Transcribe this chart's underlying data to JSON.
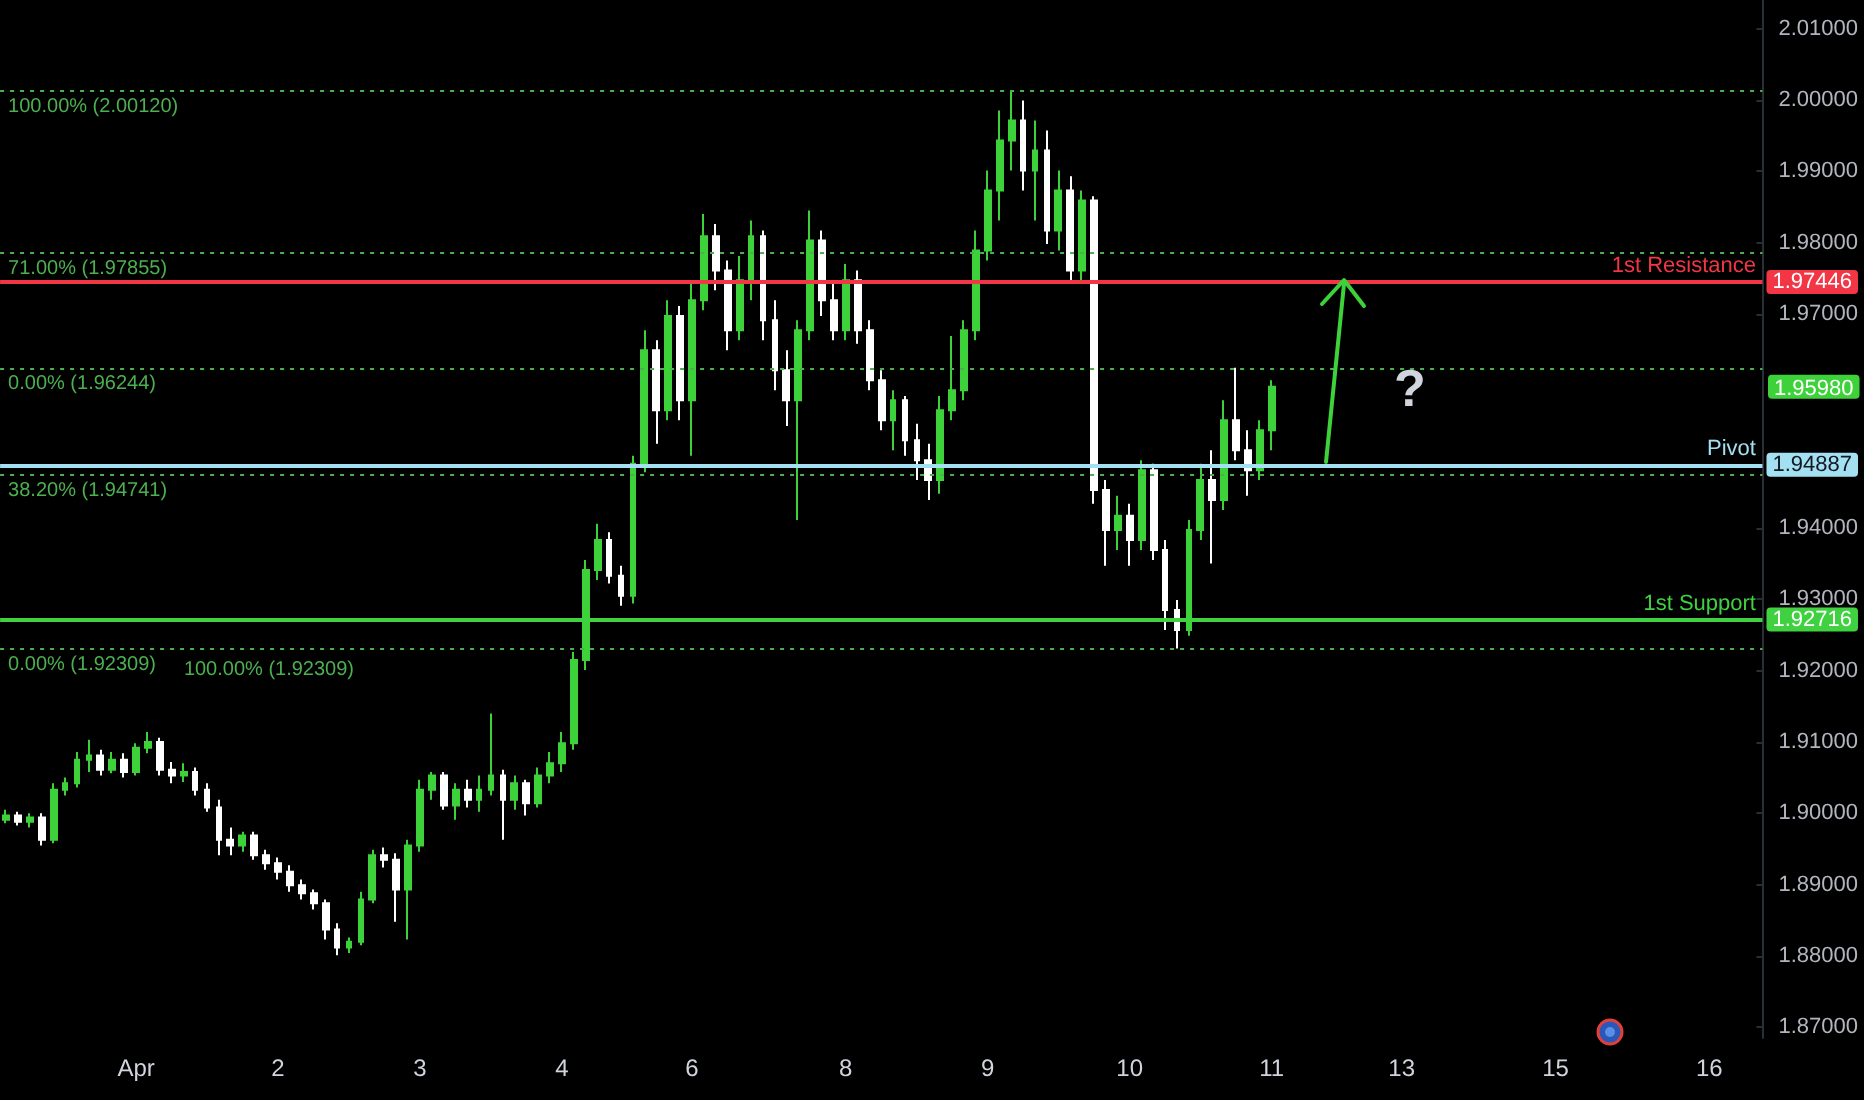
{
  "chart_data": {
    "type": "candlestick",
    "categories": [
      null,
      null,
      null,
      null,
      null,
      null,
      null,
      null,
      null,
      null,
      null,
      "Apr",
      null,
      null,
      null,
      null,
      null,
      null,
      null,
      null,
      null,
      null,
      null,
      "2",
      null,
      null,
      null,
      null,
      null,
      null,
      null,
      null,
      null,
      null,
      null,
      "3",
      null,
      null,
      null,
      null,
      null,
      null,
      null,
      null,
      null,
      null,
      null,
      "4",
      null,
      null,
      null,
      null,
      null,
      null,
      null,
      null,
      null,
      null,
      "6",
      null,
      null,
      null,
      null,
      null,
      null,
      null,
      null,
      null,
      null,
      null,
      null,
      "8",
      null,
      null,
      null,
      null,
      null,
      null,
      null,
      null,
      null,
      null,
      null,
      "9",
      null,
      null,
      null,
      null,
      null,
      null,
      null,
      null,
      null,
      null,
      null,
      "10",
      null,
      null,
      null,
      null,
      null,
      null,
      null,
      null,
      null,
      null,
      null,
      "11",
      null,
      null,
      null,
      null,
      null,
      null,
      null,
      null,
      null,
      null,
      "13",
      null,
      null,
      null,
      null,
      null,
      null,
      null,
      null,
      null,
      null,
      null,
      null,
      "15",
      null,
      null,
      null,
      null,
      null,
      null,
      null,
      null,
      null,
      null,
      null,
      null,
      "16",
      null,
      null,
      null,
      null
    ],
    "ohlc": [
      [
        1.8991,
        1.9005,
        1.8986,
        1.8997
      ],
      [
        1.8997,
        1.9002,
        1.8983,
        1.8988
      ],
      [
        1.8988,
        1.9,
        1.898,
        1.8994
      ],
      [
        1.8994,
        1.9,
        1.8955,
        1.8963
      ],
      [
        1.8963,
        1.9042,
        1.8958,
        1.9033
      ],
      [
        1.9033,
        1.905,
        1.9025,
        1.9042
      ],
      [
        1.9042,
        1.9086,
        1.9036,
        1.9075
      ],
      [
        1.9075,
        1.9103,
        1.9058,
        1.9081
      ],
      [
        1.9081,
        1.9089,
        1.9053,
        1.9061
      ],
      [
        1.9061,
        1.9086,
        1.9056,
        1.9075
      ],
      [
        1.9075,
        1.9084,
        1.905,
        1.9058
      ],
      [
        1.9058,
        1.9098,
        1.9053,
        1.9092
      ],
      [
        1.9092,
        1.9114,
        1.9084,
        1.91
      ],
      [
        1.91,
        1.9106,
        1.9053,
        1.9061
      ],
      [
        1.9061,
        1.9072,
        1.9042,
        1.9053
      ],
      [
        1.9053,
        1.907,
        1.9044,
        1.9058
      ],
      [
        1.9058,
        1.9064,
        1.9025,
        1.9033
      ],
      [
        1.9033,
        1.9042,
        1.9002,
        1.9008
      ],
      [
        1.9008,
        1.9019,
        1.8941,
        1.8963
      ],
      [
        1.8963,
        1.898,
        1.8941,
        1.8955
      ],
      [
        1.8955,
        1.8974,
        1.8946,
        1.8969
      ],
      [
        1.8969,
        1.8974,
        1.8935,
        1.8941
      ],
      [
        1.8941,
        1.8949,
        1.8921,
        1.893
      ],
      [
        1.893,
        1.8938,
        1.8907,
        1.8918
      ],
      [
        1.8918,
        1.8927,
        1.889,
        1.8899
      ],
      [
        1.8899,
        1.8907,
        1.8879,
        1.8888
      ],
      [
        1.8888,
        1.8893,
        1.8865,
        1.8874
      ],
      [
        1.8874,
        1.8879,
        1.8823,
        1.8837
      ],
      [
        1.8837,
        1.8846,
        1.8801,
        1.8812
      ],
      [
        1.8812,
        1.8826,
        1.8804,
        1.882
      ],
      [
        1.882,
        1.889,
        1.8815,
        1.8879
      ],
      [
        1.8879,
        1.8949,
        1.8874,
        1.8941
      ],
      [
        1.8941,
        1.8952,
        1.8924,
        1.8935
      ],
      [
        1.8935,
        1.8944,
        1.8848,
        1.8893
      ],
      [
        1.8893,
        1.8963,
        1.8823,
        1.8955
      ],
      [
        1.8955,
        1.9047,
        1.8946,
        1.9033
      ],
      [
        1.9033,
        1.9058,
        1.9019,
        1.9053
      ],
      [
        1.9053,
        1.9058,
        1.9005,
        1.9011
      ],
      [
        1.9011,
        1.9042,
        1.8991,
        1.9033
      ],
      [
        1.9033,
        1.9047,
        1.9008,
        1.9019
      ],
      [
        1.9019,
        1.9053,
        1.9002,
        1.9033
      ],
      [
        1.9033,
        1.914,
        1.9025,
        1.9053
      ],
      [
        1.9053,
        1.9061,
        1.8963,
        1.9019
      ],
      [
        1.9019,
        1.9053,
        1.9005,
        1.9042
      ],
      [
        1.9042,
        1.9047,
        1.8997,
        1.9014
      ],
      [
        1.9014,
        1.9064,
        1.9008,
        1.9053
      ],
      [
        1.9053,
        1.9086,
        1.9042,
        1.907
      ],
      [
        1.907,
        1.9114,
        1.9058,
        1.9098
      ],
      [
        1.9098,
        1.9226,
        1.9089,
        1.9215
      ],
      [
        1.9215,
        1.9355,
        1.9201,
        1.9341
      ],
      [
        1.9341,
        1.9406,
        1.9327,
        1.9383
      ],
      [
        1.9383,
        1.9394,
        1.9322,
        1.9333
      ],
      [
        1.9333,
        1.9347,
        1.9291,
        1.9305
      ],
      [
        1.9305,
        1.9501,
        1.9294,
        1.949
      ],
      [
        1.949,
        1.9677,
        1.9478,
        1.9649
      ],
      [
        1.9649,
        1.9663,
        1.9518,
        1.9565
      ],
      [
        1.9565,
        1.9719,
        1.9551,
        1.9697
      ],
      [
        1.9697,
        1.9711,
        1.9551,
        1.9579
      ],
      [
        1.9579,
        1.9747,
        1.9501,
        1.9719
      ],
      [
        1.9719,
        1.984,
        1.9705,
        1.9809
      ],
      [
        1.9809,
        1.9826,
        1.9733,
        1.9761
      ],
      [
        1.9761,
        1.9775,
        1.9649,
        1.9677
      ],
      [
        1.9677,
        1.9781,
        1.9663,
        1.9747
      ],
      [
        1.9747,
        1.9831,
        1.9719,
        1.9809
      ],
      [
        1.9809,
        1.9817,
        1.9663,
        1.9691
      ],
      [
        1.9691,
        1.9719,
        1.9593,
        1.9621
      ],
      [
        1.9621,
        1.9649,
        1.9543,
        1.9579
      ],
      [
        1.9579,
        1.9691,
        1.9411,
        1.9677
      ],
      [
        1.9677,
        1.9845,
        1.9663,
        1.9803
      ],
      [
        1.9803,
        1.9817,
        1.9697,
        1.9719
      ],
      [
        1.9719,
        1.9747,
        1.9663,
        1.9677
      ],
      [
        1.9677,
        1.977,
        1.9663,
        1.9747
      ],
      [
        1.9747,
        1.9761,
        1.9658,
        1.9677
      ],
      [
        1.9677,
        1.9691,
        1.9593,
        1.9607
      ],
      [
        1.9607,
        1.9621,
        1.9537,
        1.9551
      ],
      [
        1.9551,
        1.9593,
        1.9509,
        1.9579
      ],
      [
        1.9579,
        1.9585,
        1.9501,
        1.9523
      ],
      [
        1.9523,
        1.9546,
        1.9467,
        1.9495
      ],
      [
        1.9495,
        1.9518,
        1.9439,
        1.9467
      ],
      [
        1.9467,
        1.9585,
        1.9448,
        1.9565
      ],
      [
        1.9565,
        1.9669,
        1.9551,
        1.9593
      ],
      [
        1.9593,
        1.9691,
        1.9579,
        1.9677
      ],
      [
        1.9677,
        1.9817,
        1.9663,
        1.9789
      ],
      [
        1.9789,
        1.9901,
        1.9775,
        1.9873
      ],
      [
        1.9873,
        1.9985,
        1.9831,
        1.9943
      ],
      [
        1.9943,
        2.0012,
        1.9901,
        1.9971
      ],
      [
        1.9971,
        1.9999,
        1.9873,
        1.9901
      ],
      [
        1.9901,
        1.9971,
        1.9831,
        1.9929
      ],
      [
        1.9929,
        1.9957,
        1.9798,
        1.9817
      ],
      [
        1.9817,
        1.9901,
        1.9789,
        1.9873
      ],
      [
        1.9873,
        1.9893,
        1.9747,
        1.9761
      ],
      [
        1.9761,
        1.9873,
        1.9744,
        1.9859
      ],
      [
        1.9859,
        1.9865,
        1.9434,
        1.9453
      ],
      [
        1.9453,
        1.9467,
        1.9347,
        1.9397
      ],
      [
        1.9397,
        1.9445,
        1.9369,
        1.9417
      ],
      [
        1.9417,
        1.9434,
        1.9347,
        1.9383
      ],
      [
        1.9383,
        1.9495,
        1.9369,
        1.9481
      ],
      [
        1.9481,
        1.949,
        1.9355,
        1.9369
      ],
      [
        1.9369,
        1.9383,
        1.9257,
        1.9285
      ],
      [
        1.9285,
        1.9299,
        1.92309,
        1.9257
      ],
      [
        1.9257,
        1.9411,
        1.9249,
        1.9397
      ],
      [
        1.9397,
        1.949,
        1.9383,
        1.9467
      ],
      [
        1.9467,
        1.9509,
        1.935,
        1.9439
      ],
      [
        1.9439,
        1.9579,
        1.9425,
        1.9551
      ],
      [
        1.9551,
        1.96244,
        1.9495,
        1.9509
      ],
      [
        1.9509,
        1.9537,
        1.9445,
        1.9481
      ],
      [
        1.9481,
        1.9551,
        1.9467,
        1.9537
      ],
      [
        1.9537,
        1.9607,
        1.9509,
        1.9598
      ],
      null,
      null,
      null,
      null,
      null,
      null,
      null,
      null,
      null,
      null,
      null,
      null,
      null,
      null,
      null,
      null,
      null,
      null,
      null,
      null,
      null,
      null,
      null,
      null,
      null,
      null,
      null,
      null,
      null,
      null,
      null,
      null,
      null,
      null,
      null,
      null,
      null,
      null,
      null,
      null,
      null
    ],
    "colors": [
      "#3dd13a",
      "#ffffff",
      "#3dd13a",
      "#ffffff",
      "#3dd13a",
      "#3dd13a",
      "#3dd13a",
      "#3dd13a",
      "#ffffff",
      "#3dd13a",
      "#ffffff",
      "#3dd13a",
      "#3dd13a",
      "#ffffff",
      "#ffffff",
      "#3dd13a",
      "#ffffff",
      "#ffffff",
      "#ffffff",
      "#ffffff",
      "#3dd13a",
      "#ffffff",
      "#ffffff",
      "#ffffff",
      "#ffffff",
      "#ffffff",
      "#ffffff",
      "#ffffff",
      "#ffffff",
      "#3dd13a",
      "#3dd13a",
      "#3dd13a",
      "#ffffff",
      "#ffffff",
      "#3dd13a",
      "#3dd13a",
      "#3dd13a",
      "#ffffff",
      "#3dd13a",
      "#ffffff",
      "#3dd13a",
      "#3dd13a",
      "#ffffff",
      "#3dd13a",
      "#ffffff",
      "#3dd13a",
      "#3dd13a",
      "#3dd13a",
      "#3dd13a",
      "#3dd13a",
      "#3dd13a",
      "#ffffff",
      "#ffffff",
      "#3dd13a",
      "#3dd13a",
      "#ffffff",
      "#3dd13a",
      "#ffffff",
      "#3dd13a",
      "#3dd13a",
      "#ffffff",
      "#ffffff",
      "#3dd13a",
      "#3dd13a",
      "#ffffff",
      "#ffffff",
      "#ffffff",
      "#3dd13a",
      "#3dd13a",
      "#ffffff",
      "#ffffff",
      "#3dd13a",
      "#ffffff",
      "#ffffff",
      "#ffffff",
      "#3dd13a",
      "#ffffff",
      "#ffffff",
      "#ffffff",
      "#3dd13a",
      "#3dd13a",
      "#3dd13a",
      "#3dd13a",
      "#3dd13a",
      "#3dd13a",
      "#3dd13a",
      "#ffffff",
      "#3dd13a",
      "#ffffff",
      "#3dd13a",
      "#ffffff",
      "#3dd13a",
      "#ffffff",
      "#ffffff",
      "#3dd13a",
      "#ffffff",
      "#3dd13a",
      "#ffffff",
      "#ffffff",
      "#ffffff",
      "#3dd13a",
      "#3dd13a",
      "#ffffff",
      "#3dd13a",
      "#ffffff",
      "#ffffff",
      "#3dd13a",
      "#3dd13a",
      null,
      null,
      null,
      null,
      null,
      null,
      null,
      null,
      null,
      null,
      null,
      null,
      null,
      null,
      null,
      null,
      null,
      null,
      null,
      null,
      null,
      null,
      null,
      null,
      null,
      null,
      null,
      null,
      null,
      null,
      null,
      null,
      null,
      null,
      null,
      null,
      null,
      null,
      null,
      null,
      null
    ],
    "ylim": [
      1.8685,
      2.014
    ],
    "yticks": [
      {
        "value": 1.87,
        "label": "1.87000"
      },
      {
        "value": 1.88,
        "label": "1.88000"
      },
      {
        "value": 1.89,
        "label": "1.89000"
      },
      {
        "value": 1.9,
        "label": "1.90000"
      },
      {
        "value": 1.91,
        "label": "1.91000"
      },
      {
        "value": 1.92,
        "label": "1.92000"
      },
      {
        "value": 1.93,
        "label": "1.93000"
      },
      {
        "value": 1.94,
        "label": "1.94000"
      },
      {
        "value": 1.97,
        "label": "1.97000"
      },
      {
        "value": 1.98,
        "label": "1.98000"
      },
      {
        "value": 1.99,
        "label": "1.99000"
      },
      {
        "value": 2.0,
        "label": "2.00000"
      },
      {
        "value": 2.01,
        "label": "2.01000"
      }
    ],
    "ref_lines": [
      {
        "axis": "y",
        "value": 2.0012,
        "label": "100.00% (2.00120)",
        "color": "#4caf50",
        "line_style": "dotted"
      },
      {
        "axis": "y",
        "value": 1.97855,
        "label": "71.00% (1.97855)",
        "color": "#4caf50",
        "line_style": "dotted"
      },
      {
        "axis": "y",
        "value": 1.92309,
        "label": "0.00% (1.92309)",
        "color": "#4caf50",
        "line_style": "dotted"
      },
      {
        "axis": "y",
        "value": 1.96244,
        "label": "0.00% (1.96244)",
        "color": "#4caf50",
        "line_style": "dotted"
      },
      {
        "axis": "y",
        "value": 1.94741,
        "label": "38.20% (1.94741)",
        "color": "#4caf50",
        "line_style": "dotted"
      },
      {
        "axis": "y",
        "value": 1.97446,
        "label": "1.97446",
        "color": "#f23645"
      },
      {
        "axis": "y",
        "value": 1.94887,
        "label": "1.94887",
        "color": "#a3e1f2"
      },
      {
        "axis": "y",
        "value": 1.92716,
        "label": "1.92716",
        "color": "#3fd13f"
      }
    ],
    "annotations": [
      "1.95980",
      "?",
      {
        "text": "1st Resistance",
        "y": 1.97446
      },
      {
        "text": "Pivot",
        "y": 1.94887
      },
      {
        "text": "1st Support",
        "y": 1.92716
      },
      {
        "text": "100.00% (1.92309)",
        "y": 1.92309
      }
    ]
  }
}
